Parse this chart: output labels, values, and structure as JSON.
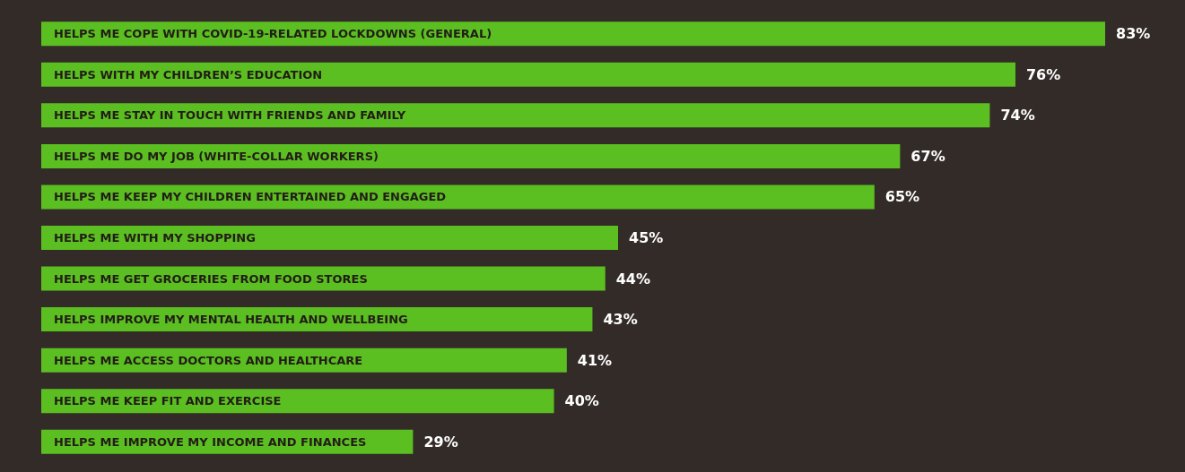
{
  "chart_data": {
    "type": "bar",
    "orientation": "horizontal",
    "categories": [
      "HELPS ME COPE WITH COVID-19-RELATED LOCKDOWNS (GENERAL)",
      "HELPS WITH MY CHILDREN’S EDUCATION",
      "HELPS ME STAY IN TOUCH WITH FRIENDS AND FAMILY",
      "HELPS ME DO MY JOB (WHITE-COLLAR WORKERS)",
      "HELPS ME KEEP MY CHILDREN ENTERTAINED AND ENGAGED",
      "HELPS ME WITH MY SHOPPING",
      "HELPS ME GET GROCERIES FROM FOOD STORES",
      "HELPS IMPROVE MY MENTAL HEALTH AND WELLBEING",
      "HELPS ME ACCESS DOCTORS AND HEALTHCARE",
      "HELPS ME KEEP FIT AND EXERCISE",
      "HELPS ME IMPROVE MY INCOME AND FINANCES"
    ],
    "values": [
      83,
      76,
      74,
      67,
      65,
      45,
      44,
      43,
      41,
      40,
      29
    ],
    "value_labels": [
      "83%",
      "76%",
      "74%",
      "67%",
      "65%",
      "45%",
      "44%",
      "43%",
      "41%",
      "40%",
      "29%"
    ],
    "color": "#5bbf21"
  }
}
